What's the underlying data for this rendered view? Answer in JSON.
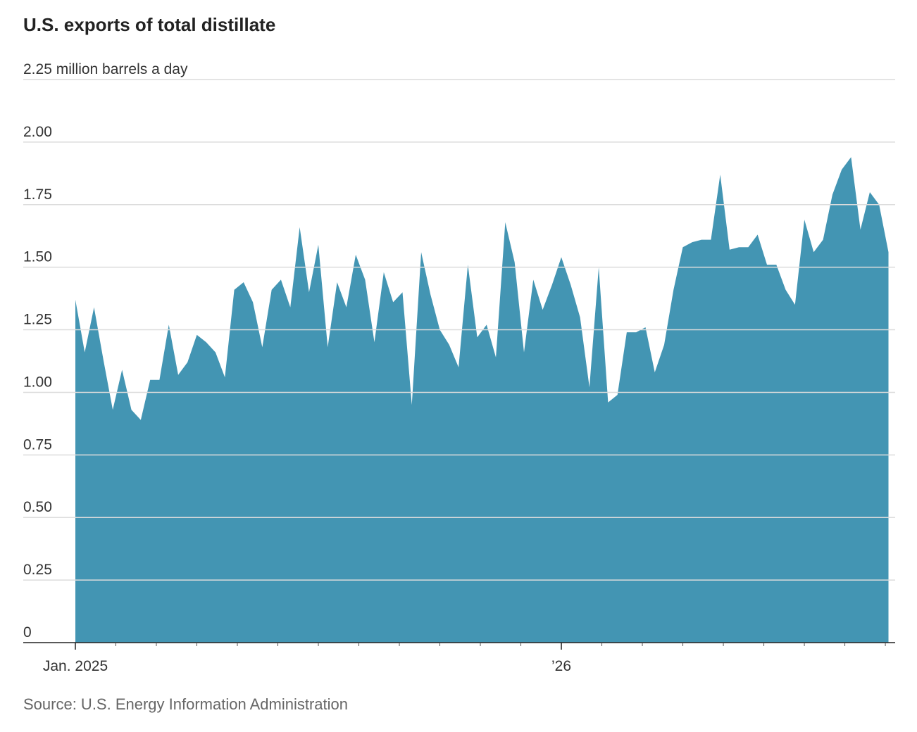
{
  "chart_data": {
    "type": "area",
    "title": "U.S. exports of total distillate",
    "source": "Source: U.S. Energy Information Administration",
    "color": "#4395b3",
    "grid": true,
    "categories": [
      "Jan. 2025",
      null,
      null,
      null,
      null,
      null,
      null,
      null,
      null,
      null,
      null,
      null,
      null,
      null,
      null,
      null,
      null,
      null,
      null,
      null,
      null,
      null,
      null,
      null,
      null,
      null,
      null,
      null,
      null,
      null,
      null,
      null,
      null,
      null,
      null,
      null,
      null,
      null,
      null,
      null,
      null,
      null,
      null,
      null,
      null,
      null,
      null,
      null,
      null,
      null,
      null,
      null,
      "’26",
      null,
      null,
      null,
      null,
      null,
      null,
      null,
      null,
      null,
      null,
      null,
      null,
      null,
      null,
      null,
      null,
      null,
      null,
      null,
      null,
      null,
      null,
      null,
      null,
      null,
      null,
      null,
      null,
      null,
      null,
      null,
      null,
      null,
      null,
      null
    ],
    "values": [
      1.37,
      1.16,
      1.34,
      1.13,
      0.93,
      1.09,
      0.93,
      0.89,
      1.05,
      1.05,
      1.27,
      1.07,
      1.12,
      1.23,
      1.2,
      1.16,
      1.06,
      1.41,
      1.44,
      1.36,
      1.18,
      1.41,
      1.45,
      1.34,
      1.66,
      1.4,
      1.59,
      1.18,
      1.44,
      1.34,
      1.55,
      1.45,
      1.2,
      1.48,
      1.36,
      1.4,
      0.95,
      1.56,
      1.39,
      1.25,
      1.19,
      1.1,
      1.51,
      1.22,
      1.27,
      1.14,
      1.68,
      1.52,
      1.16,
      1.45,
      1.33,
      1.43,
      1.54,
      1.43,
      1.3,
      1.02,
      1.5,
      0.96,
      0.99,
      1.24,
      1.24,
      1.26,
      1.08,
      1.19,
      1.41,
      1.58,
      1.6,
      1.61,
      1.61,
      1.87,
      1.57,
      1.58,
      1.58,
      1.63,
      1.51,
      1.51,
      1.41,
      1.35,
      1.69,
      1.56,
      1.61,
      1.79,
      1.89,
      1.94,
      1.65,
      1.8,
      1.75,
      1.56
    ],
    "ylim": [
      0,
      2.25
    ],
    "yticks": [
      0,
      0.25,
      {
        "value": 0.5,
        "label": "0.50"
      },
      0.75,
      {
        "value": 1,
        "label": "1.00"
      },
      1.25,
      {
        "value": 1.5,
        "label": "1.50"
      },
      1.75,
      {
        "value": 2,
        "label": "2.00"
      },
      {
        "value": 2.25,
        "label": "2.25 million barrels a day"
      }
    ]
  }
}
